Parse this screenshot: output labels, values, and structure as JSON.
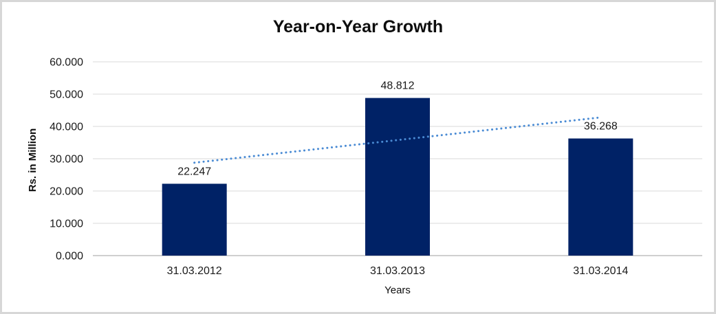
{
  "window": {
    "background_color": "#ffffff",
    "frame_border_color": "#d7d7d7"
  },
  "chart_data": {
    "type": "bar",
    "title": "Year-on-Year Growth",
    "xlabel": "Years",
    "ylabel": "Rs. in Million",
    "categories": [
      "31.03.2012",
      "31.03.2013",
      "31.03.2014"
    ],
    "values": [
      22247,
      48812,
      36268
    ],
    "value_labels": [
      "22.247",
      "48.812",
      "36.268"
    ],
    "ylim": [
      0,
      60000
    ],
    "yticks": [
      0,
      10000,
      20000,
      30000,
      40000,
      50000,
      60000
    ],
    "ytick_labels": [
      "0.000",
      "10.000",
      "20.000",
      "30.000",
      "40.000",
      "50.000",
      "60.000"
    ],
    "grid": true,
    "legend": "none",
    "bar_color": "#002266",
    "gridline_color": "#d9d9d9",
    "axis_line_color": "#bfbfbf",
    "label_color": "#1a1a1a",
    "trendline": {
      "type": "linear",
      "style": "dotted",
      "color": "#4a8bd4",
      "start_value": 28765,
      "end_value": 42786
    }
  }
}
